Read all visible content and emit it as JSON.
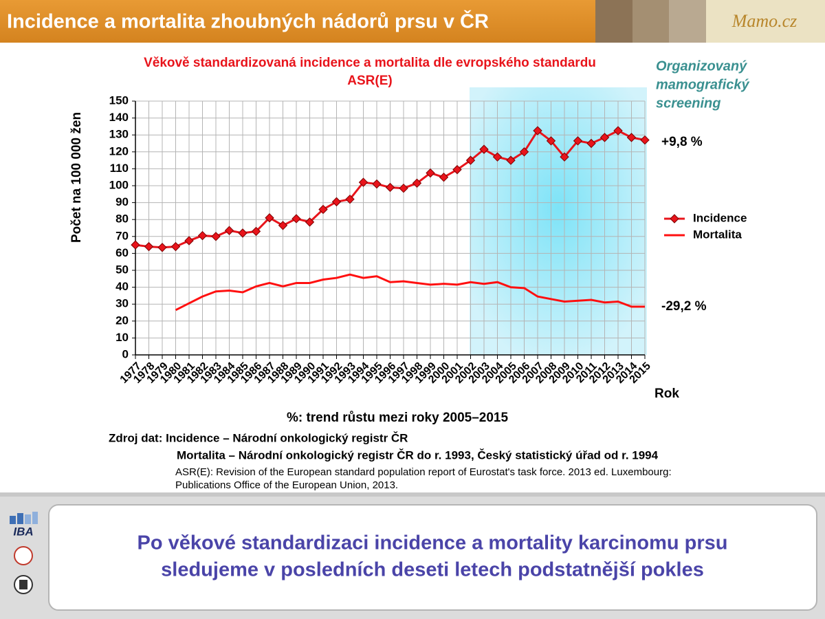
{
  "header": {
    "title": "Incidence a mortalita zhoubných nádorů prsu v ČR",
    "logo": "Mamo.cz"
  },
  "chart_data": {
    "type": "line",
    "title": "Věkově standardizovaná incidence a mortalita dle evropského standardu",
    "subtitle": "ASR(E)",
    "ylabel": "Počet  na 100 000 žen",
    "xlabel": "Rok",
    "categories": [
      "1977",
      "1978",
      "1979",
      "1980",
      "1981",
      "1982",
      "1983",
      "1984",
      "1985",
      "1986",
      "1987",
      "1988",
      "1989",
      "1990",
      "1991",
      "1992",
      "1993",
      "1994",
      "1995",
      "1996",
      "1997",
      "1998",
      "1999",
      "2000",
      "2001",
      "2002",
      "2003",
      "2004",
      "2005",
      "2006",
      "2007",
      "2008",
      "2009",
      "2010",
      "2011",
      "2012",
      "2013",
      "2014",
      "2015"
    ],
    "series": [
      {
        "name": "Incidence",
        "color": "#e8141b",
        "marker": "diamond",
        "values": [
          65,
          64,
          63.5,
          64,
          67.5,
          70.5,
          70,
          73.5,
          72,
          73,
          81,
          76.5,
          80.5,
          78.5,
          86,
          90.5,
          92,
          102,
          101,
          99,
          98.5,
          101.5,
          107.5,
          105,
          109.5,
          115,
          121.5,
          117,
          115,
          120,
          132.5,
          126.5,
          117,
          126.5,
          125,
          128.5,
          132.5,
          128.5,
          127
        ]
      },
      {
        "name": "Mortalita",
        "color": "#ff1010",
        "values": [
          null,
          null,
          null,
          26.5,
          30.5,
          34.5,
          37.5,
          38,
          37,
          40.5,
          42.5,
          40.5,
          42.5,
          42.5,
          44.5,
          45.5,
          47.5,
          45.5,
          46.5,
          43,
          43.5,
          42.5,
          41.5,
          42,
          41.5,
          43,
          42,
          43,
          40,
          39.5,
          34.5,
          33,
          31.5,
          32,
          32.5,
          31,
          31.5,
          28.5,
          28.5
        ]
      }
    ],
    "ylim": [
      0,
      150
    ],
    "yticks": [
      0,
      10,
      20,
      30,
      40,
      50,
      60,
      70,
      80,
      90,
      100,
      110,
      120,
      130,
      140,
      150
    ],
    "grid": true,
    "legend": "right",
    "annotations": [
      "+9,8 %",
      "-29,2 %"
    ],
    "screening_note": [
      "Organizovaný",
      "mamografický",
      "screening"
    ],
    "trend_note": "%: trend růstu mezi roky 2005–2015"
  },
  "sources": [
    "Zdroj dat: Incidence – Národní onkologický registr ČR",
    "Mortalita – Národní onkologický registr ČR do r. 1993, Český statistický úřad od r. 1994",
    "ASR(E): Revision of the European standard population report of Eurostat's task force. 2013 ed. Luxembourg:",
    "Publications Office of the European Union, 2013."
  ],
  "footer": {
    "logo": "IBA",
    "message": [
      "Po věkové standardizaci incidence a mortality karcinomu prsu",
      "sledujeme v posledních deseti letech podstatnější pokles"
    ]
  }
}
